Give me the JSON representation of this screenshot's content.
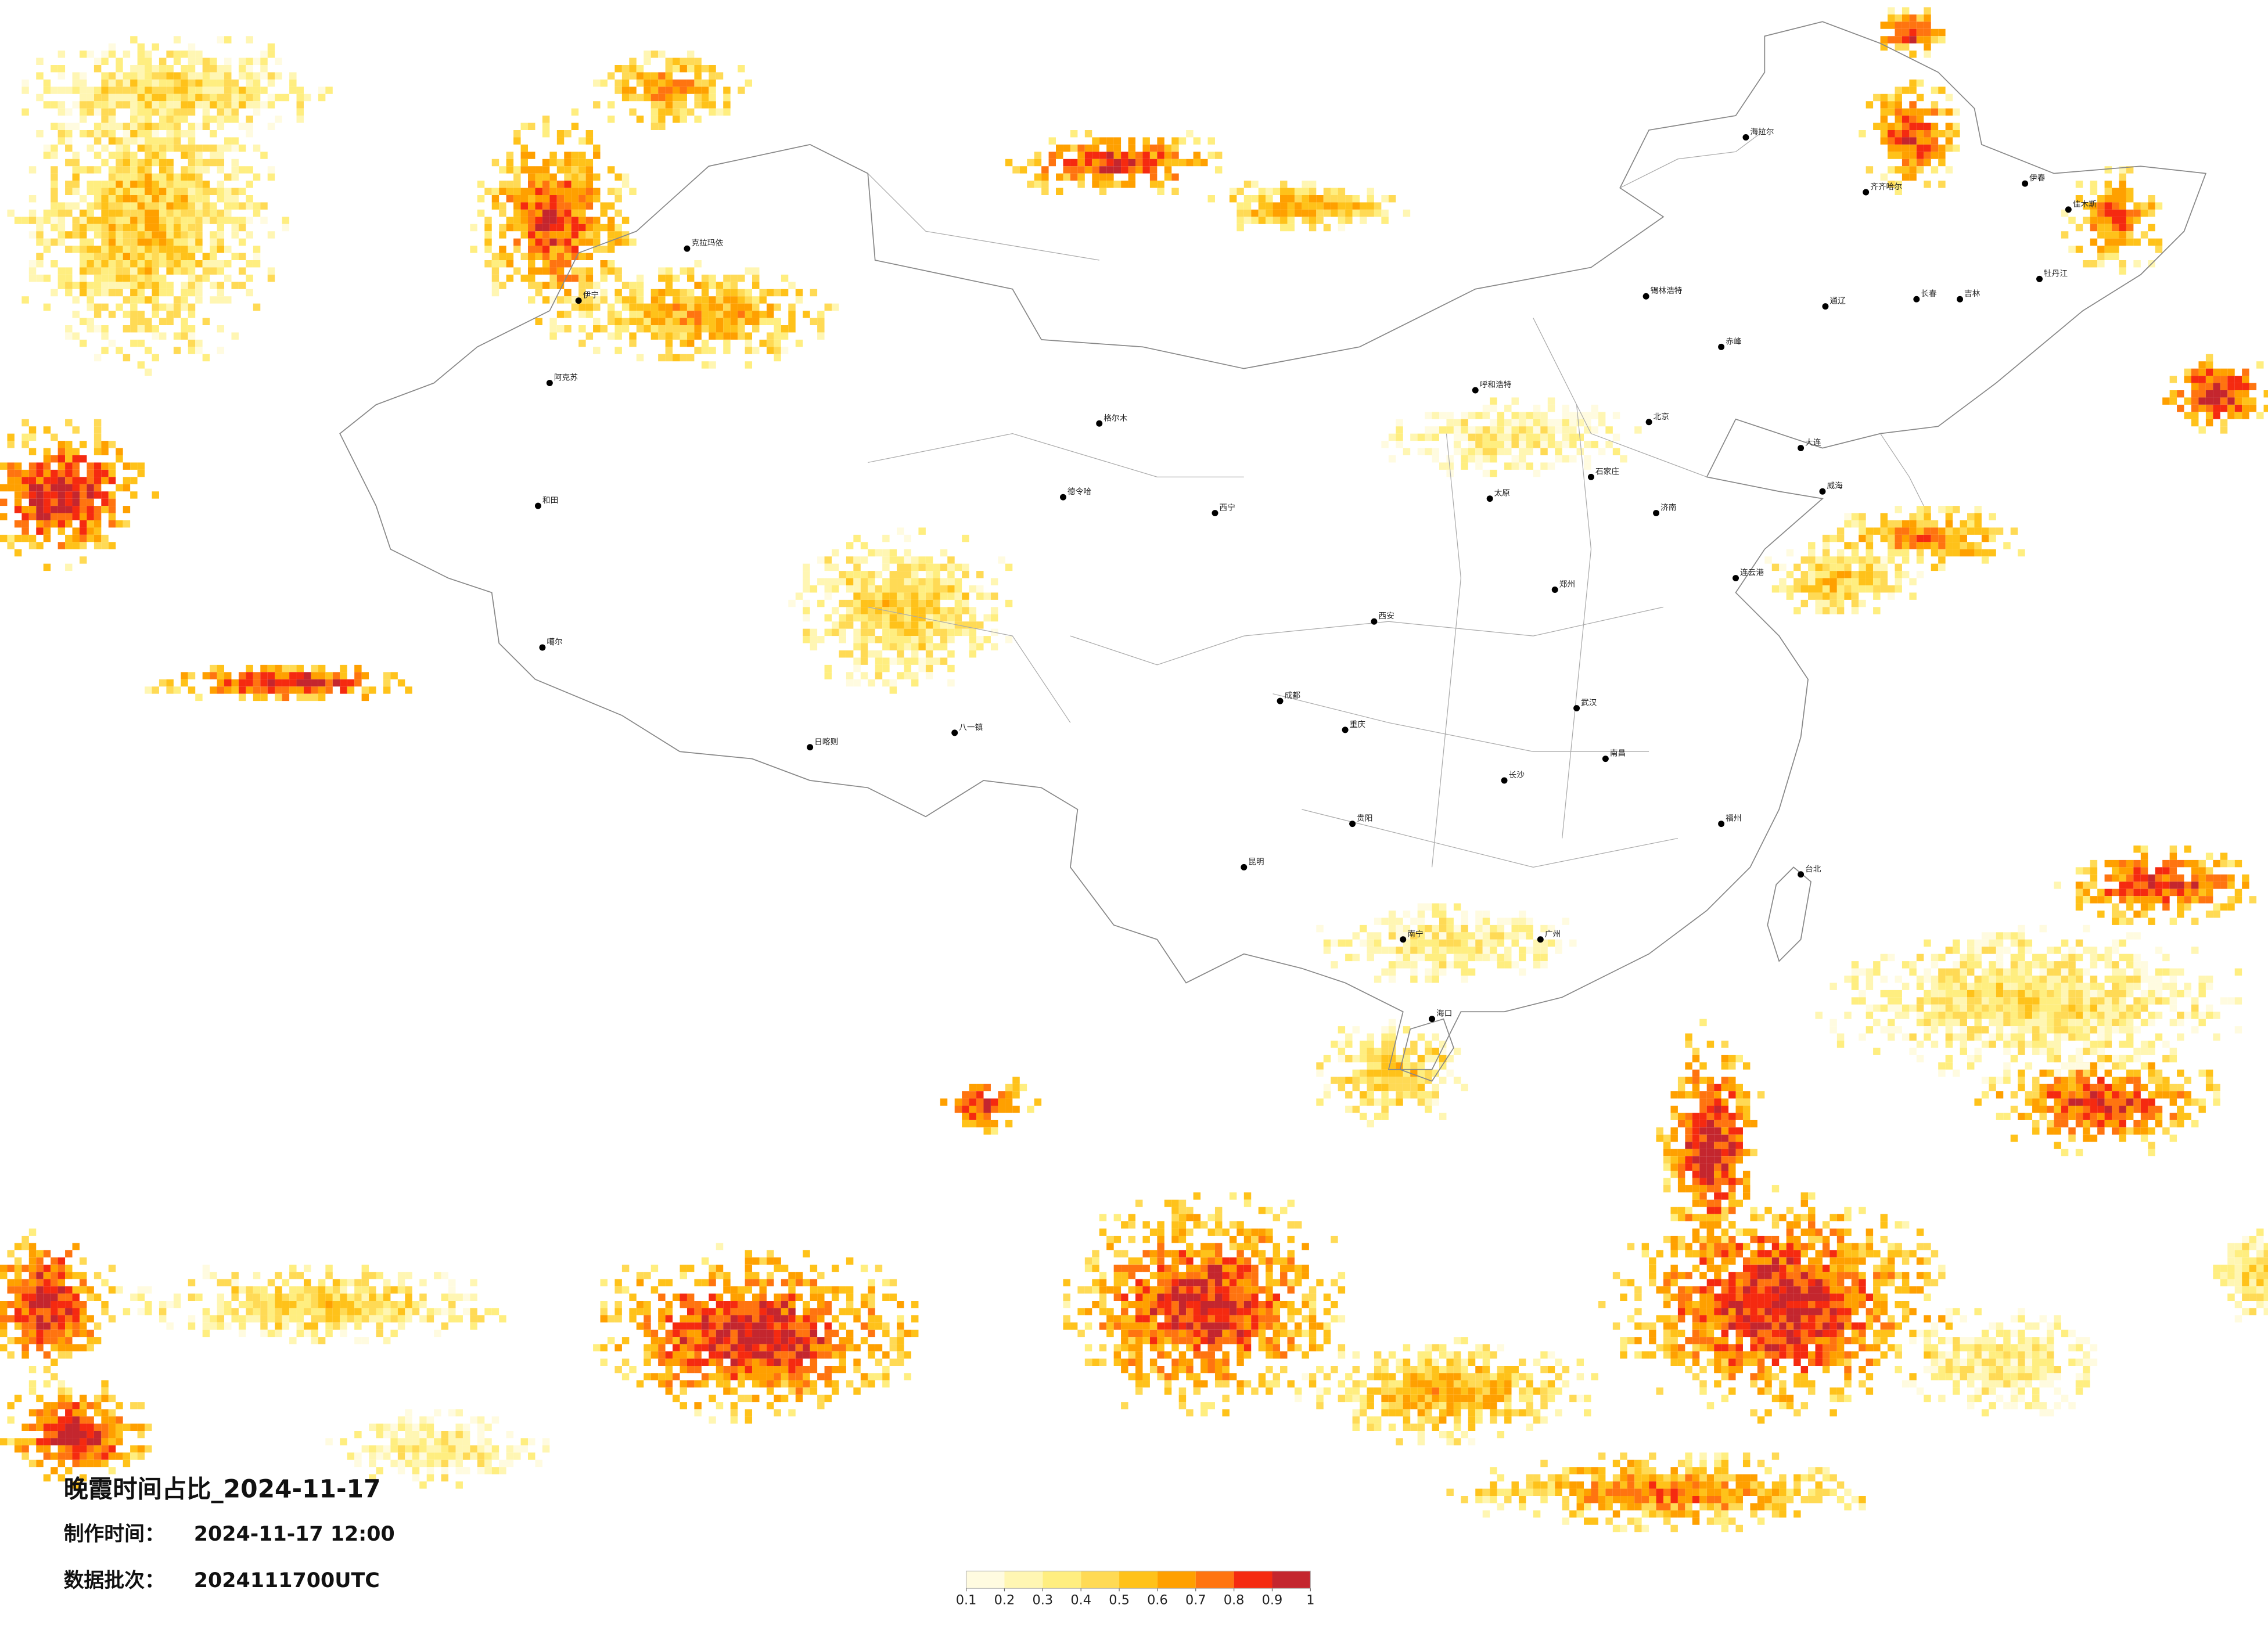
{
  "title": "晚霞时间占比_2024-11-17",
  "made_time": {
    "label": "制作时间：",
    "value": "2024-11-17 12:00"
  },
  "data_batch": {
    "label": "数据批次：",
    "value": "2024111700UTC"
  },
  "colorbar": {
    "colors": [
      "#fffbe0",
      "#fff6b3",
      "#ffee80",
      "#ffda55",
      "#ffc21a",
      "#ffa000",
      "#ff7410",
      "#f52a10",
      "#c4262e"
    ],
    "ticks": [
      0.1,
      0.2,
      0.3,
      0.4,
      0.5,
      0.6,
      0.7,
      0.8,
      0.9,
      1
    ]
  },
  "cities": [
    "海拉尔",
    "齐齐哈尔",
    "伊春",
    "佳木斯",
    "牡丹江",
    "长春",
    "吉林",
    "通辽",
    "锡林浩特",
    "赤峰",
    "呼和浩特",
    "北京",
    "大连",
    "威海",
    "济南",
    "石家庄",
    "太原",
    "郑州",
    "连云港",
    "西安",
    "武汉",
    "成都",
    "重庆",
    "贵阳",
    "昆明",
    "长沙",
    "南昌",
    "福州",
    "广州",
    "南宁",
    "海口",
    "台北",
    "西宁",
    "格尔木",
    "德令哈",
    "克拉玛依",
    "伊宁",
    "阿克苏",
    "和田",
    "噶尔",
    "日喀则",
    "八一镇"
  ]
}
